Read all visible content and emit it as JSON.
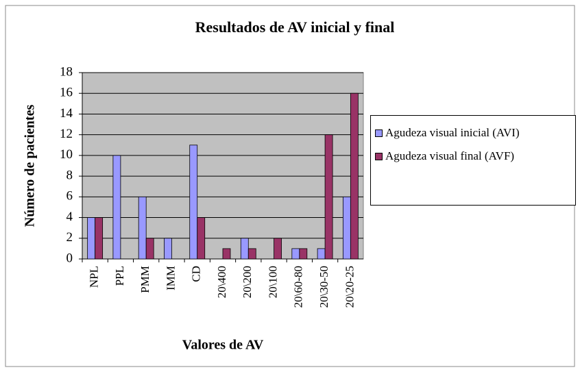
{
  "chart_data": {
    "type": "bar",
    "title": "Resultados de AV inicial y final",
    "x_label": "Valores de AV",
    "y_label": "Número de pacientes",
    "categories": [
      "NPL",
      "PPL",
      "PMM",
      "IMM",
      "CD",
      "20\\400",
      "20\\200",
      "20\\100",
      "20\\60-80",
      "20\\30-50",
      "20\\20-25"
    ],
    "series": [
      {
        "name": "Agudeza visual inicial (AVI)",
        "color": "#9999ff",
        "values": [
          4,
          10,
          6,
          2,
          11,
          0,
          2,
          0,
          1,
          1,
          6
        ]
      },
      {
        "name": "Agudeza visual final (AVF)",
        "color": "#993366",
        "values": [
          4,
          0,
          2,
          0,
          4,
          1,
          1,
          2,
          1,
          12,
          16
        ]
      }
    ],
    "ylim": [
      0,
      18
    ],
    "yticks": [
      0,
      2,
      4,
      6,
      8,
      10,
      12,
      14,
      16,
      18
    ],
    "grid": true,
    "legend": "right"
  }
}
